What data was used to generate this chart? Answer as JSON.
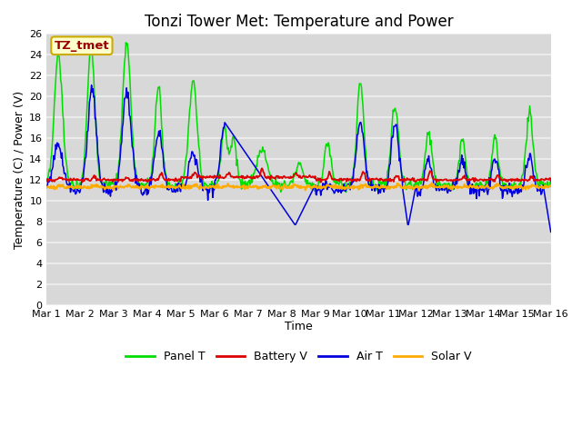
{
  "title": "Tonzi Tower Met: Temperature and Power",
  "xlabel": "Time",
  "ylabel": "Temperature (C) / Power (V)",
  "ylim": [
    0,
    26
  ],
  "yticks": [
    0,
    2,
    4,
    6,
    8,
    10,
    12,
    14,
    16,
    18,
    20,
    22,
    24,
    26
  ],
  "xtick_labels": [
    "Mar 1",
    "Mar 2",
    "Mar 3",
    "Mar 4",
    "Mar 5",
    "Mar 6",
    "Mar 7",
    "Mar 8",
    "Mar 9",
    "Mar 10",
    "Mar 11",
    "Mar 12",
    "Mar 13",
    "Mar 14",
    "Mar 15",
    "Mar 16"
  ],
  "annotation_label": "TZ_tmet",
  "annotation_color": "#990000",
  "annotation_bg": "#ffffcc",
  "annotation_border": "#ccaa00",
  "colors": {
    "panel_t": "#00dd00",
    "battery_v": "#dd0000",
    "air_t": "#0000dd",
    "solar_v": "#ffaa00"
  },
  "fig_bg": "#ffffff",
  "plot_bg": "#d8d8d8",
  "grid_color": "#f0f0f0",
  "title_fontsize": 12,
  "label_fontsize": 9,
  "tick_fontsize": 8
}
